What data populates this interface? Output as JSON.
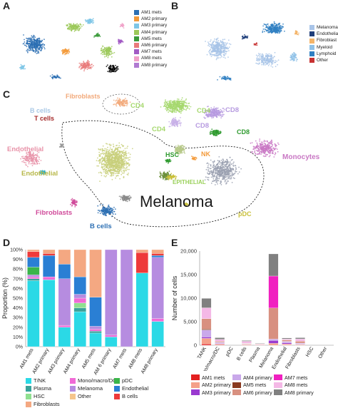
{
  "panels": {
    "a": "A",
    "b": "B",
    "c": "C",
    "d": "D",
    "e": "E"
  },
  "colors": {
    "AM1 mets": "#2c6fb3",
    "AM2 primary": "#f39a3a",
    "AM3 primary": "#7ec6e6",
    "AM4 primary": "#9cc95a",
    "AM5 mets": "#3a9a3a",
    "AM6 primary": "#e97b7b",
    "AM7 mets": "#a25bc4",
    "AM8 primary": "#f0a0c8"
  },
  "legend_a": [
    {
      "label": "AM1 mets",
      "color": "#2c6fb3"
    },
    {
      "label": "AM2 primary",
      "color": "#f39a3a"
    },
    {
      "label": "AM3 primary",
      "color": "#7ec6e6"
    },
    {
      "label": "AM4 primary",
      "color": "#9cc95a"
    },
    {
      "label": "AM5 mets",
      "color": "#3a9a3a"
    },
    {
      "label": "AM6 primary",
      "color": "#e97b7b"
    },
    {
      "label": "AM7 mets",
      "color": "#a25bc4"
    },
    {
      "label": "AM8 mets",
      "color": "#f0a0c8"
    },
    {
      "label": "AM8 primary",
      "color": "#b07ad1"
    }
  ],
  "legend_b": [
    {
      "label": "Melanoma",
      "color": "#a8c4e8"
    },
    {
      "label": "Endothelial",
      "color": "#1f3e7a"
    },
    {
      "label": "Fibroblast",
      "color": "#f4b56a"
    },
    {
      "label": "Myeloid",
      "color": "#8ec1e8"
    },
    {
      "label": "Lymphoid",
      "color": "#2f7fc2"
    },
    {
      "label": "Other",
      "color": "#c83232"
    }
  ],
  "tsne_c_labels": [
    {
      "text": "Fibroblasts",
      "color": "#f2a97a"
    },
    {
      "text": "CD4",
      "color": "#a6d86e"
    },
    {
      "text": "CD4",
      "color": "#a6d86e"
    },
    {
      "text": "CD8",
      "color": "#b79be0"
    },
    {
      "text": "CD8",
      "color": "#b79be0"
    },
    {
      "text": "CD4",
      "color": "#a6d86e"
    },
    {
      "text": "CD8",
      "color": "#2e9a2e"
    },
    {
      "text": "B cells",
      "color": "#a9c8e6"
    },
    {
      "text": "T cells",
      "color": "#a52a2a"
    },
    {
      "text": "Endothelial",
      "color": "#e892a8"
    },
    {
      "text": "HSC",
      "color": "#2e9a2e"
    },
    {
      "text": "NK",
      "color": "#f39a3a"
    },
    {
      "text": "Monocytes",
      "color": "#c978c4"
    },
    {
      "text": "Endothelial",
      "color": "#b8b84a"
    },
    {
      "text": "EPITHELIAL",
      "color": "#9ad05a"
    },
    {
      "text": "Melanoma",
      "color": "#1a1a1a"
    },
    {
      "text": "Fibroblasts",
      "color": "#d04a9a"
    },
    {
      "text": "B cells",
      "color": "#2c6fb3"
    },
    {
      "text": "pDC",
      "color": "#c9c03a"
    }
  ],
  "chart_data": [
    {
      "type": "bar",
      "stacked": true,
      "panel": "D",
      "ylabel": "Proportion (%)",
      "ylim": [
        0,
        100
      ],
      "yticks": [
        "0%",
        "10%",
        "20%",
        "30%",
        "40%",
        "50%",
        "60%",
        "70%",
        "80%",
        "90%",
        "100%"
      ],
      "categories": [
        "AM1 mets",
        "AM2 primary",
        "AM3 primary",
        "AM4 primary",
        "AM5 mets",
        "AM 6 primary",
        "AM7 mets",
        "AM8 mets",
        "AM8 primary"
      ],
      "series": [
        {
          "name": "T/NK",
          "color": "#2bd9e6",
          "values": [
            68,
            69,
            20,
            36,
            14,
            10,
            0,
            76,
            26
          ]
        },
        {
          "name": "Plasma",
          "color": "#3aa29a",
          "values": [
            2,
            0,
            0,
            4,
            2,
            0,
            0,
            0,
            0
          ]
        },
        {
          "name": "HSC",
          "color": "#90e090",
          "values": [
            0,
            0,
            0,
            5,
            0,
            0,
            0,
            0,
            0
          ]
        },
        {
          "name": "Mono/macro/DC",
          "color": "#f06ad6",
          "values": [
            2,
            3,
            2,
            5,
            2,
            2,
            0,
            0,
            3
          ]
        },
        {
          "name": "Melanoma",
          "color": "#b68ce0",
          "values": [
            2,
            0,
            48,
            4,
            3,
            88,
            100,
            0,
            63
          ]
        },
        {
          "name": "Other",
          "color": "#f5c58c",
          "values": [
            0,
            0,
            0,
            0,
            0,
            0,
            0,
            0,
            0
          ]
        },
        {
          "name": "pDC",
          "color": "#3ab54a",
          "values": [
            8,
            0,
            0,
            0,
            0,
            0,
            0,
            0,
            0
          ]
        },
        {
          "name": "Endothelial",
          "color": "#2a7fd4",
          "values": [
            10,
            22,
            15,
            18,
            30,
            0,
            0,
            0,
            2
          ]
        },
        {
          "name": "B cells",
          "color": "#ee3a3a",
          "values": [
            6,
            2,
            0,
            0,
            0,
            0,
            0,
            21,
            2
          ]
        },
        {
          "name": "Fibroblasts",
          "color": "#f4a882",
          "values": [
            2,
            4,
            15,
            28,
            49,
            0,
            0,
            3,
            4
          ]
        }
      ],
      "legend": [
        "T/NK",
        "Mono/macro/DC",
        "pDC",
        "Plasma",
        "Melanoma",
        "Endothelial",
        "HSC",
        "Other",
        "B cells",
        "Fibroblasts"
      ]
    },
    {
      "type": "bar",
      "stacked": true,
      "panel": "E",
      "ylabel": "Number of cells",
      "ylim": [
        0,
        20000
      ],
      "yticks": [
        "0",
        "5,000",
        "10,000",
        "15,000",
        "20,000"
      ],
      "categories": [
        "TANK",
        "Mono/macro/DC",
        "pDC",
        "B cells",
        "Plasma",
        "Melanoma",
        "Endothelial",
        "Fibroblasts",
        "HSC",
        "Other"
      ],
      "series": [
        {
          "name": "AM1 mets",
          "color": "#e32020",
          "values": [
            250,
            100,
            0,
            80,
            0,
            0,
            80,
            0,
            0,
            0
          ]
        },
        {
          "name": "AM2 primary",
          "color": "#f4a08a",
          "values": [
            1200,
            150,
            0,
            100,
            100,
            400,
            200,
            150,
            0,
            0
          ]
        },
        {
          "name": "AM3 primary",
          "color": "#9a3ad0",
          "values": [
            300,
            100,
            0,
            50,
            50,
            600,
            200,
            50,
            0,
            0
          ]
        },
        {
          "name": "AM4 primary",
          "color": "#c9a8ea",
          "values": [
            1500,
            250,
            0,
            60,
            50,
            300,
            300,
            200,
            0,
            0
          ]
        },
        {
          "name": "AM5 mets",
          "color": "#8a3a20",
          "values": [
            200,
            50,
            0,
            50,
            0,
            0,
            50,
            50,
            0,
            0
          ]
        },
        {
          "name": "AM6 primary",
          "color": "#d89080",
          "values": [
            2200,
            200,
            0,
            100,
            50,
            6600,
            300,
            400,
            0,
            0
          ]
        },
        {
          "name": "AM7 mets",
          "color": "#f020c0",
          "values": [
            0,
            0,
            0,
            0,
            0,
            6800,
            0,
            0,
            0,
            0
          ]
        },
        {
          "name": "AM8 mets",
          "color": "#f4b8e6",
          "values": [
            2300,
            400,
            0,
            400,
            100,
            0,
            200,
            500,
            0,
            0
          ]
        },
        {
          "name": "AM8 primary",
          "color": "#808080",
          "values": [
            2000,
            350,
            0,
            160,
            100,
            4700,
            200,
            250,
            0,
            0
          ]
        }
      ],
      "legend": [
        "AM1 mets",
        "AM4 primary",
        "AM7 mets",
        "AM2 primary",
        "AM5 mets",
        "AM8 mets",
        "AM3 primary",
        "AM6 primary",
        "AM8 primary"
      ]
    }
  ]
}
